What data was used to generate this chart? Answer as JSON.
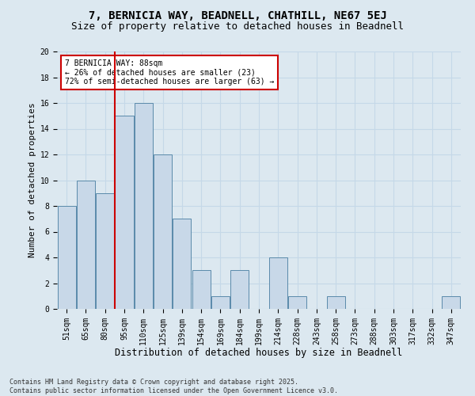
{
  "title1": "7, BERNICIA WAY, BEADNELL, CHATHILL, NE67 5EJ",
  "title2": "Size of property relative to detached houses in Beadnell",
  "xlabel": "Distribution of detached houses by size in Beadnell",
  "ylabel": "Number of detached properties",
  "categories": [
    "51sqm",
    "65sqm",
    "80sqm",
    "95sqm",
    "110sqm",
    "125sqm",
    "139sqm",
    "154sqm",
    "169sqm",
    "184sqm",
    "199sqm",
    "214sqm",
    "228sqm",
    "243sqm",
    "258sqm",
    "273sqm",
    "288sqm",
    "303sqm",
    "317sqm",
    "332sqm",
    "347sqm"
  ],
  "values": [
    8,
    10,
    9,
    15,
    16,
    12,
    7,
    3,
    1,
    3,
    0,
    4,
    1,
    0,
    1,
    0,
    0,
    0,
    0,
    0,
    1
  ],
  "bar_color": "#c8d8e8",
  "bar_edge_color": "#5a8aaa",
  "grid_color": "#c5d8e8",
  "background_color": "#dce8f0",
  "vline_color": "#cc0000",
  "vline_x": 2.5,
  "annotation_text": "7 BERNICIA WAY: 88sqm\n← 26% of detached houses are smaller (23)\n72% of semi-detached houses are larger (63) →",
  "annotation_box_color": "#ffffff",
  "annotation_box_edge": "#cc0000",
  "ylim": [
    0,
    20
  ],
  "yticks": [
    0,
    2,
    4,
    6,
    8,
    10,
    12,
    14,
    16,
    18,
    20
  ],
  "footnote": "Contains HM Land Registry data © Crown copyright and database right 2025.\nContains public sector information licensed under the Open Government Licence v3.0.",
  "title1_fontsize": 10,
  "title2_fontsize": 9,
  "xlabel_fontsize": 8.5,
  "ylabel_fontsize": 8,
  "tick_fontsize": 7,
  "annotation_fontsize": 7,
  "footnote_fontsize": 6
}
